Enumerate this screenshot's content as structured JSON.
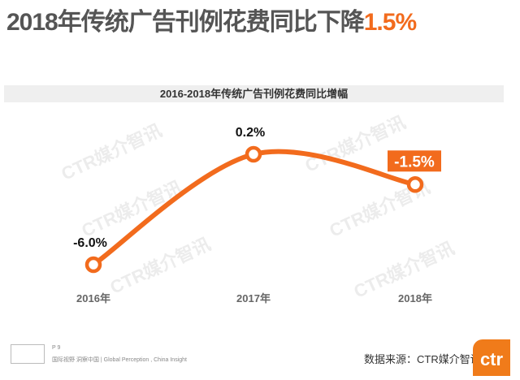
{
  "title": {
    "main": "2018年传统广告刊例花费同比下降",
    "highlight": "1.5%"
  },
  "chart_data": {
    "type": "line",
    "title": "2016-2018年传统广告刊例花费同比增幅",
    "categories": [
      "2016年",
      "2017年",
      "2018年"
    ],
    "values": [
      -6.0,
      0.2,
      -1.5
    ],
    "data_labels": [
      "-6.0%",
      "0.2%",
      "-1.5%"
    ],
    "highlight_index": 2,
    "grid": false,
    "color": "#f26b1d"
  },
  "watermark": "CTR媒介智讯",
  "footer": {
    "page": "P 9",
    "tagline": "国际视野  洞察中国 | Global Perception , China Insight",
    "source": "数据来源：CTR媒介智讯",
    "logo_text": "ctr"
  }
}
